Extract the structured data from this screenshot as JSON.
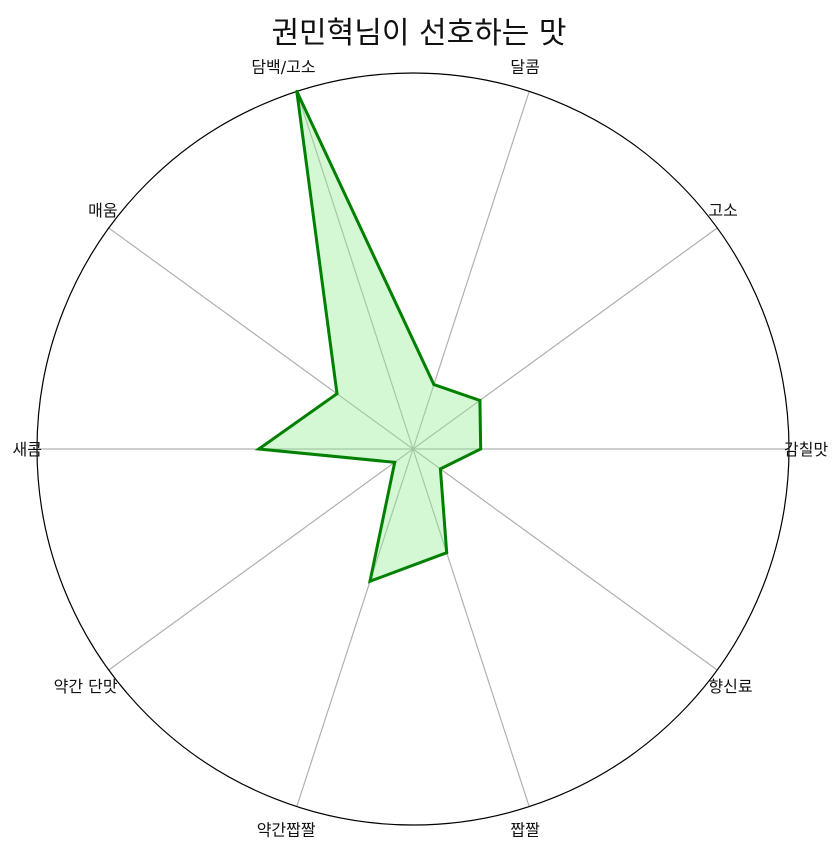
{
  "chart_data": {
    "type": "radar",
    "title": "권민혁님이 선호하는 맛",
    "categories": [
      "감칠맛",
      "고소",
      "달콤",
      "담백/고소",
      "매움",
      "새콤",
      "약간 단맛",
      "약간짭짤",
      "짭짤",
      "향신료"
    ],
    "series": [
      {
        "values": [
          0.18,
          0.22,
          0.18,
          1.0,
          0.25,
          0.41,
          0.06,
          0.37,
          0.29,
          0.09
        ]
      }
    ],
    "rlim": [
      0,
      1
    ],
    "grid": true,
    "legend": "none",
    "colors": {
      "line": "#008000",
      "fill": "#90ee90",
      "grid": "#b0b0b0",
      "frame": "#000000"
    }
  }
}
